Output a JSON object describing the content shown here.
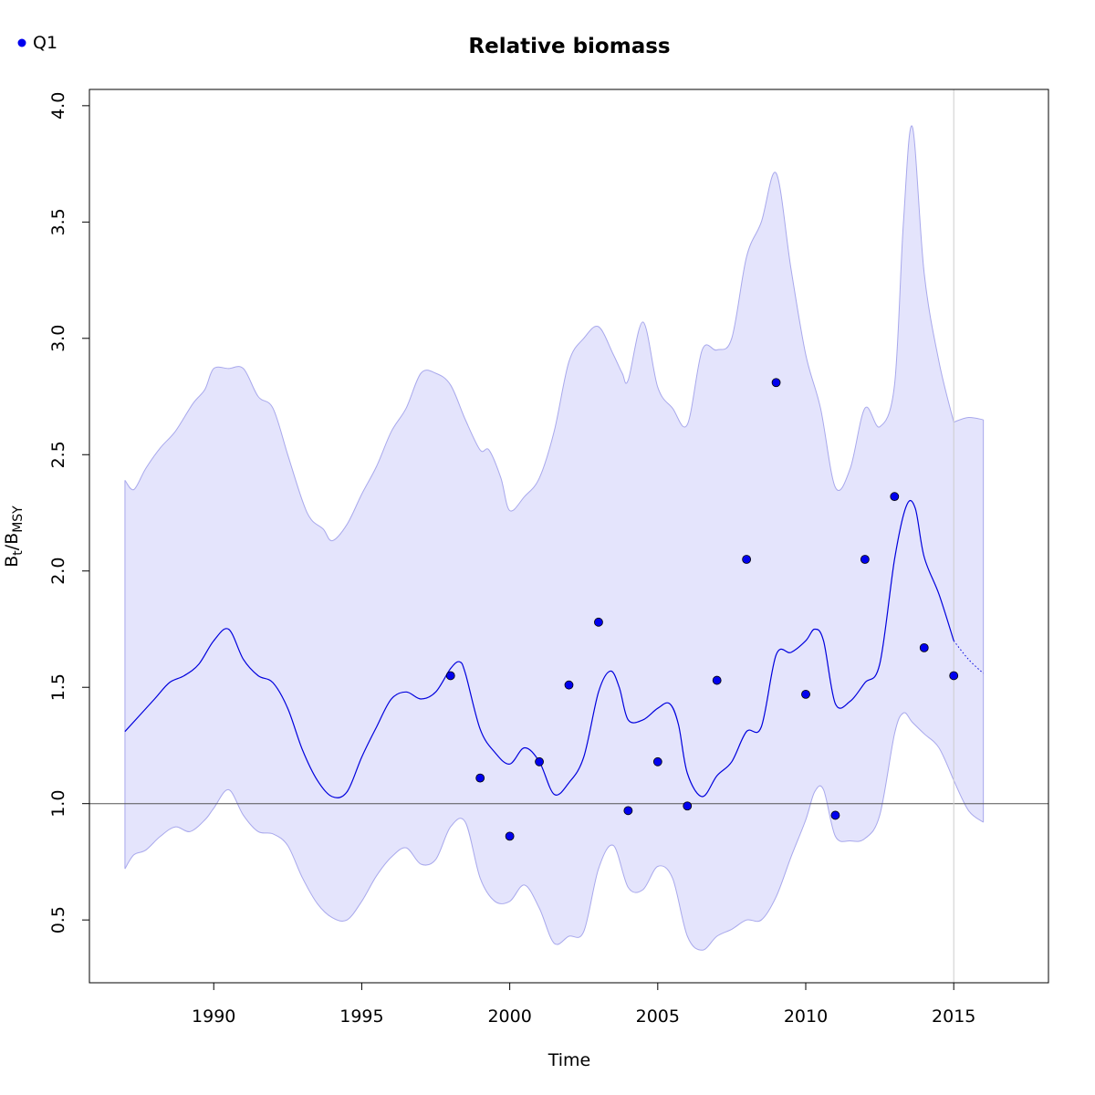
{
  "chart_data": {
    "type": "line",
    "title": "Relative biomass",
    "xlabel": "Time",
    "ylabel_main": "B",
    "ylabel_sub1": "t",
    "ylabel_slash": "/B",
    "ylabel_sub2": "MSY",
    "xlim": [
      1985.8,
      2018.2
    ],
    "ylim": [
      0.23,
      4.07
    ],
    "x_ticks": [
      1990,
      1995,
      2000,
      2005,
      2010,
      2015
    ],
    "y_ticks": [
      "0.5",
      "1.0",
      "1.5",
      "2.0",
      "2.5",
      "3.0",
      "3.5",
      "4.0"
    ],
    "reference_line_y": 1.0,
    "vertical_line_x": 2015,
    "legend": {
      "position": "top-left",
      "entries": [
        "Q1"
      ]
    },
    "colors": {
      "line": "#0000dd",
      "points": "#0000ee",
      "band_fill": "#e4e4fc",
      "band_stroke": "#a8a8ec",
      "reference": "#555555",
      "vline": "#cccccc"
    },
    "series": [
      {
        "name": "Q1",
        "kind": "points",
        "x": [
          1998,
          1999,
          2000,
          2001,
          2002,
          2003,
          2004,
          2005,
          2006,
          2007,
          2008,
          2009,
          2010,
          2011,
          2012,
          2013,
          2014,
          2015
        ],
        "y": [
          1.55,
          1.11,
          0.86,
          1.18,
          1.51,
          1.78,
          0.97,
          1.18,
          0.99,
          1.53,
          2.05,
          2.81,
          1.47,
          0.95,
          2.05,
          2.32,
          1.67,
          1.55
        ]
      },
      {
        "kind": "estimate",
        "x": [
          1987.0,
          1988.0,
          1988.5,
          1989.0,
          1989.5,
          1990.0,
          1990.5,
          1991.0,
          1991.5,
          1992.0,
          1992.5,
          1993.0,
          1993.5,
          1994.0,
          1994.5,
          1995.0,
          1995.5,
          1996.0,
          1996.5,
          1997.0,
          1997.5,
          1998.0,
          1998.3,
          1998.5,
          1999.0,
          1999.5,
          2000.0,
          2000.5,
          2001.0,
          2001.5,
          2002.0,
          2002.5,
          2003.0,
          2003.4,
          2003.7,
          2004.0,
          2004.5,
          2005.0,
          2005.4,
          2005.7,
          2006.0,
          2006.5,
          2007.0,
          2007.5,
          2008.0,
          2008.5,
          2009.0,
          2009.5,
          2010.0,
          2010.3,
          2010.6,
          2011.0,
          2011.5,
          2012.0,
          2012.5,
          2013.0,
          2013.4,
          2013.7,
          2014.0,
          2014.5,
          2015.0
        ],
        "y": [
          1.31,
          1.45,
          1.52,
          1.55,
          1.6,
          1.7,
          1.75,
          1.62,
          1.55,
          1.52,
          1.41,
          1.23,
          1.1,
          1.03,
          1.05,
          1.2,
          1.33,
          1.45,
          1.48,
          1.45,
          1.48,
          1.58,
          1.61,
          1.56,
          1.32,
          1.22,
          1.17,
          1.24,
          1.18,
          1.04,
          1.09,
          1.2,
          1.48,
          1.57,
          1.5,
          1.36,
          1.36,
          1.41,
          1.43,
          1.34,
          1.13,
          1.03,
          1.12,
          1.18,
          1.31,
          1.33,
          1.64,
          1.65,
          1.7,
          1.75,
          1.7,
          1.43,
          1.44,
          1.52,
          1.6,
          2.05,
          2.28,
          2.27,
          2.06,
          1.9,
          1.7
        ]
      },
      {
        "kind": "prediction",
        "x": [
          2015.0,
          2015.5,
          2016.0
        ],
        "y": [
          1.7,
          1.62,
          1.56
        ]
      },
      {
        "kind": "ci_upper",
        "x": [
          1987.0,
          1987.3,
          1987.7,
          1988.2,
          1988.7,
          1989.3,
          1989.7,
          1990.0,
          1990.5,
          1991.0,
          1991.5,
          1992.0,
          1992.5,
          1993.0,
          1993.3,
          1993.7,
          1994.0,
          1994.5,
          1995.0,
          1995.5,
          1996.0,
          1996.5,
          1997.0,
          1997.5,
          1998.0,
          1998.5,
          1999.0,
          1999.3,
          1999.7,
          2000.0,
          2000.5,
          2001.0,
          2001.5,
          2002.0,
          2002.5,
          2003.0,
          2003.5,
          2003.8,
          2004.0,
          2004.5,
          2005.0,
          2005.5,
          2006.0,
          2006.5,
          2007.0,
          2007.5,
          2008.0,
          2008.5,
          2009.0,
          2009.5,
          2010.0,
          2010.5,
          2011.0,
          2011.5,
          2012.0,
          2012.5,
          2013.0,
          2013.3,
          2013.6,
          2014.0,
          2014.5,
          2015.0
        ],
        "y": [
          2.39,
          2.35,
          2.44,
          2.53,
          2.6,
          2.72,
          2.78,
          2.87,
          2.87,
          2.87,
          2.75,
          2.7,
          2.5,
          2.3,
          2.22,
          2.18,
          2.13,
          2.2,
          2.33,
          2.45,
          2.6,
          2.7,
          2.85,
          2.85,
          2.8,
          2.65,
          2.52,
          2.52,
          2.4,
          2.26,
          2.32,
          2.4,
          2.6,
          2.9,
          3.0,
          3.05,
          2.93,
          2.85,
          2.82,
          3.07,
          2.79,
          2.7,
          2.63,
          2.95,
          2.95,
          3.0,
          3.35,
          3.5,
          3.71,
          3.3,
          2.93,
          2.7,
          2.36,
          2.44,
          2.7,
          2.62,
          2.8,
          3.5,
          3.91,
          3.28,
          2.9,
          2.64
        ]
      },
      {
        "kind": "ci_lower",
        "x": [
          1987.0,
          1987.3,
          1987.7,
          1988.2,
          1988.7,
          1989.2,
          1989.7,
          1990.0,
          1990.5,
          1991.0,
          1991.5,
          1992.0,
          1992.5,
          1993.0,
          1993.5,
          1994.0,
          1994.5,
          1995.0,
          1995.5,
          1996.0,
          1996.5,
          1997.0,
          1997.5,
          1998.0,
          1998.5,
          1999.0,
          1999.5,
          2000.0,
          2000.5,
          2001.0,
          2001.5,
          2002.0,
          2002.5,
          2003.0,
          2003.5,
          2004.0,
          2004.5,
          2005.0,
          2005.5,
          2006.0,
          2006.5,
          2007.0,
          2007.5,
          2008.0,
          2008.5,
          2009.0,
          2009.5,
          2010.0,
          2010.3,
          2010.6,
          2011.0,
          2011.5,
          2012.0,
          2012.5,
          2013.0,
          2013.3,
          2013.6,
          2014.0,
          2014.5,
          2015.0
        ],
        "y": [
          0.72,
          0.78,
          0.8,
          0.86,
          0.9,
          0.88,
          0.93,
          0.98,
          1.06,
          0.95,
          0.88,
          0.87,
          0.82,
          0.68,
          0.57,
          0.51,
          0.5,
          0.58,
          0.69,
          0.77,
          0.81,
          0.74,
          0.76,
          0.9,
          0.92,
          0.68,
          0.58,
          0.58,
          0.65,
          0.55,
          0.4,
          0.43,
          0.45,
          0.72,
          0.82,
          0.64,
          0.63,
          0.73,
          0.68,
          0.43,
          0.37,
          0.43,
          0.46,
          0.5,
          0.5,
          0.6,
          0.77,
          0.93,
          1.05,
          1.06,
          0.86,
          0.84,
          0.85,
          0.95,
          1.3,
          1.39,
          1.35,
          1.3,
          1.24,
          1.1
        ]
      },
      {
        "kind": "ci_upper_prediction",
        "x": [
          2015.0,
          2015.5,
          2016.0
        ],
        "y": [
          2.64,
          2.66,
          2.65
        ]
      },
      {
        "kind": "ci_lower_prediction",
        "x": [
          2015.0,
          2015.5,
          2016.0
        ],
        "y": [
          1.1,
          0.97,
          0.92
        ]
      }
    ]
  }
}
